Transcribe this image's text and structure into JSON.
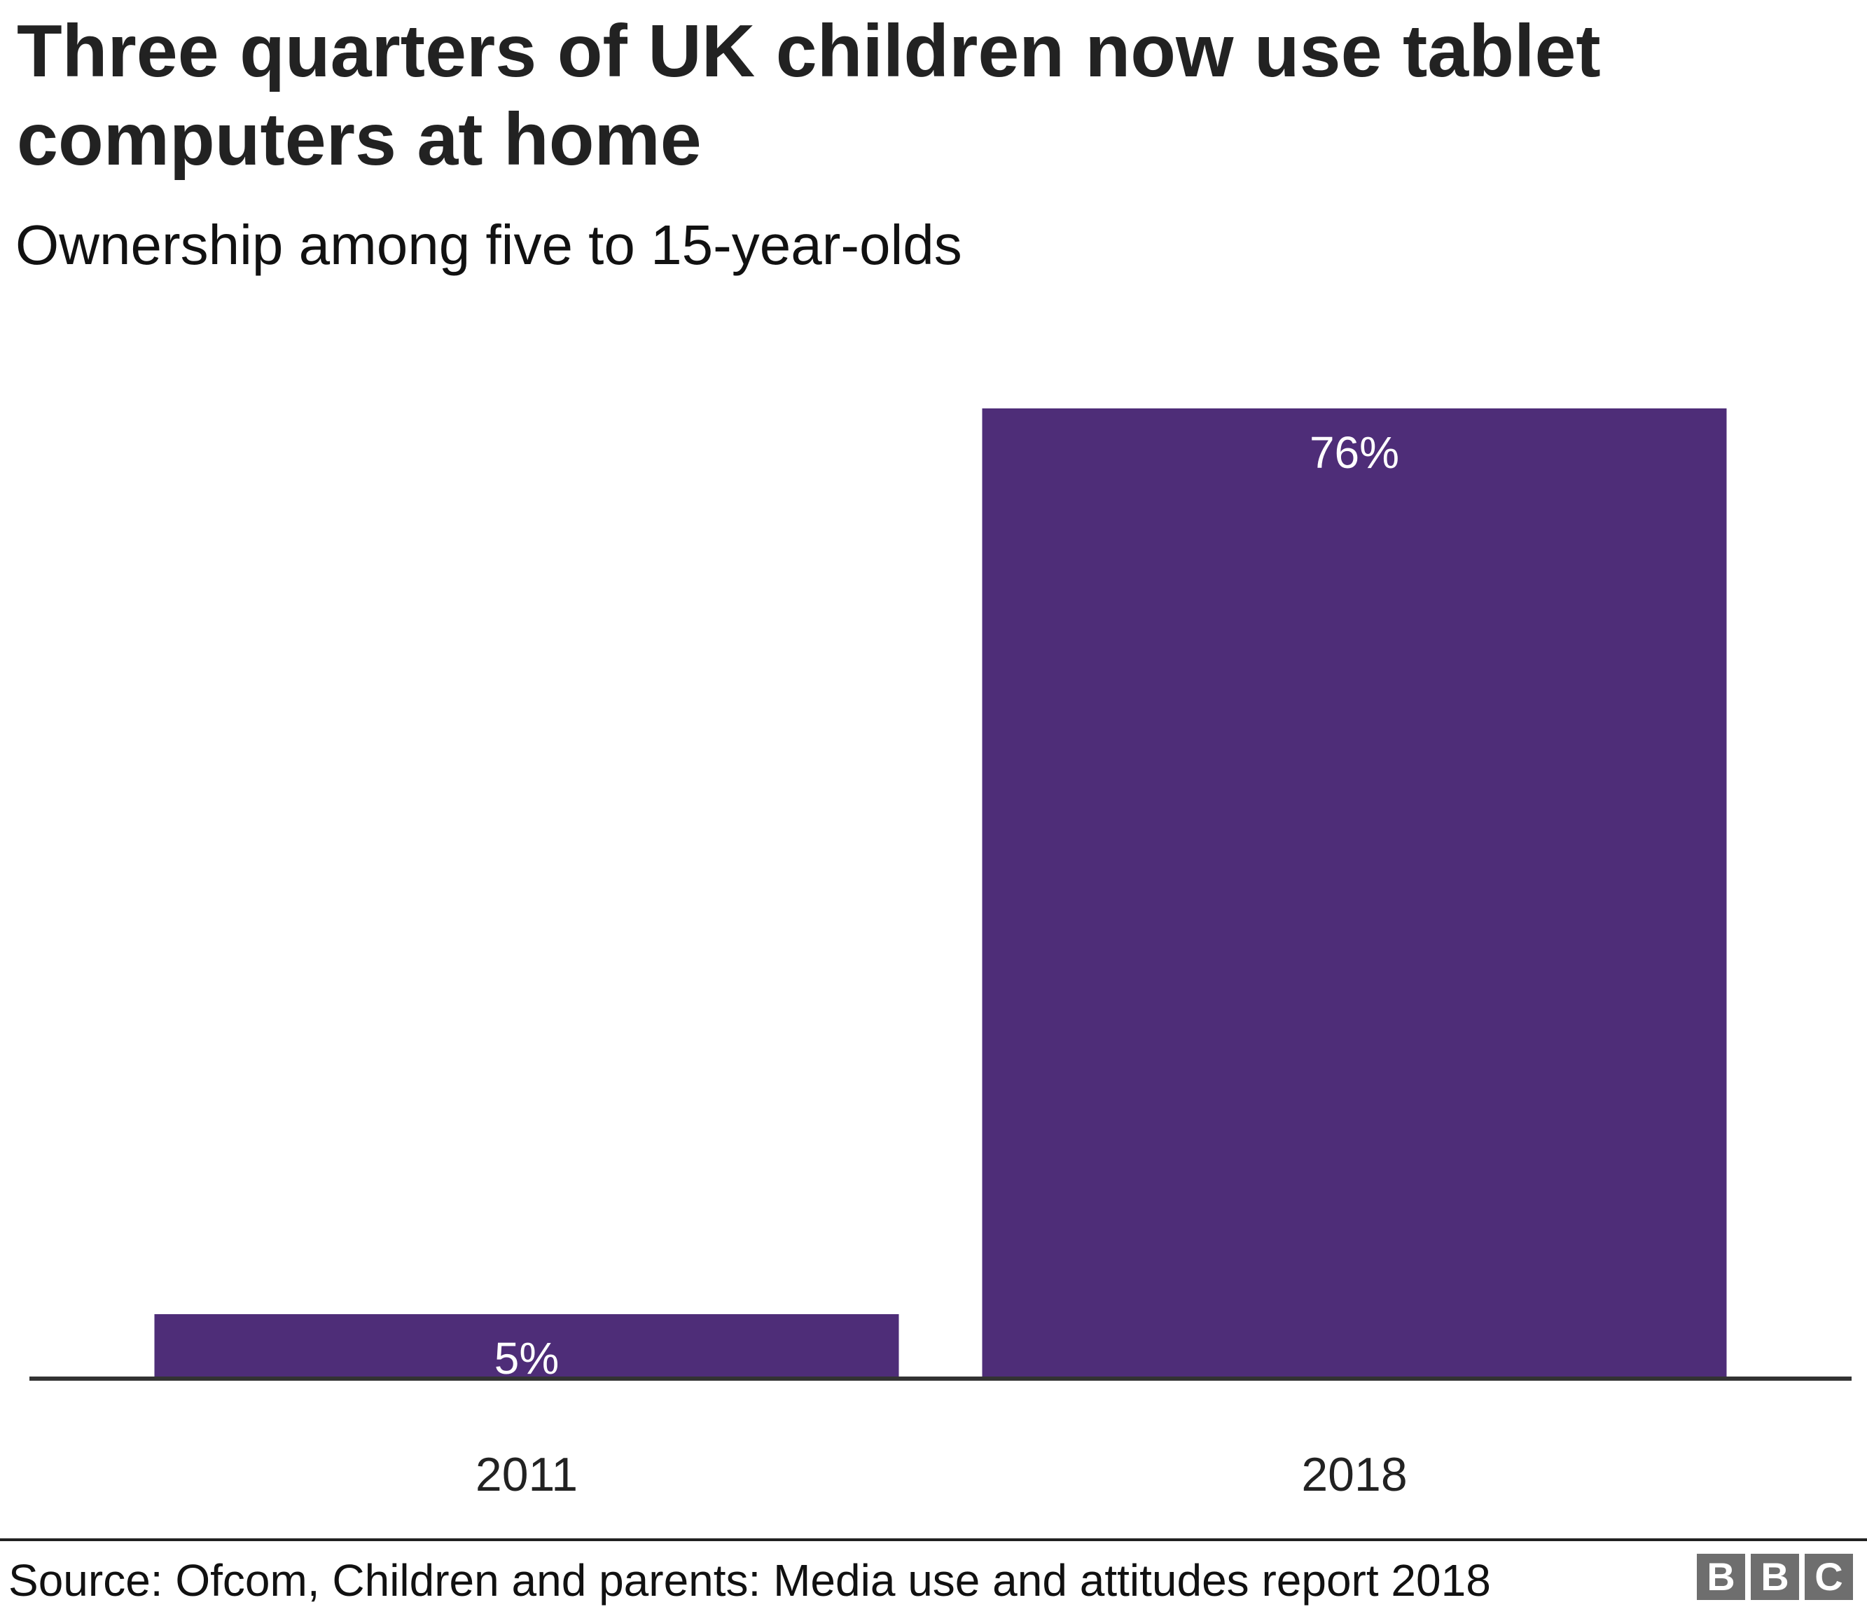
{
  "chart_data": {
    "type": "bar",
    "title": "Three quarters of UK children now use tablet computers at home",
    "subtitle": "Ownership among five to 15-year-olds",
    "categories": [
      "2011",
      "2018"
    ],
    "values": [
      5,
      76
    ],
    "data_labels": [
      "5%",
      "76%"
    ],
    "xlabel": "",
    "ylabel": "",
    "ylim": [
      0,
      76
    ],
    "grid": false,
    "bar_color": "#4e2d78",
    "label_color": "#ffffff"
  },
  "footer": {
    "source": "Source: Ofcom, Children and parents: Media use and attitudes report 2018",
    "logo": [
      "B",
      "B",
      "C"
    ]
  }
}
